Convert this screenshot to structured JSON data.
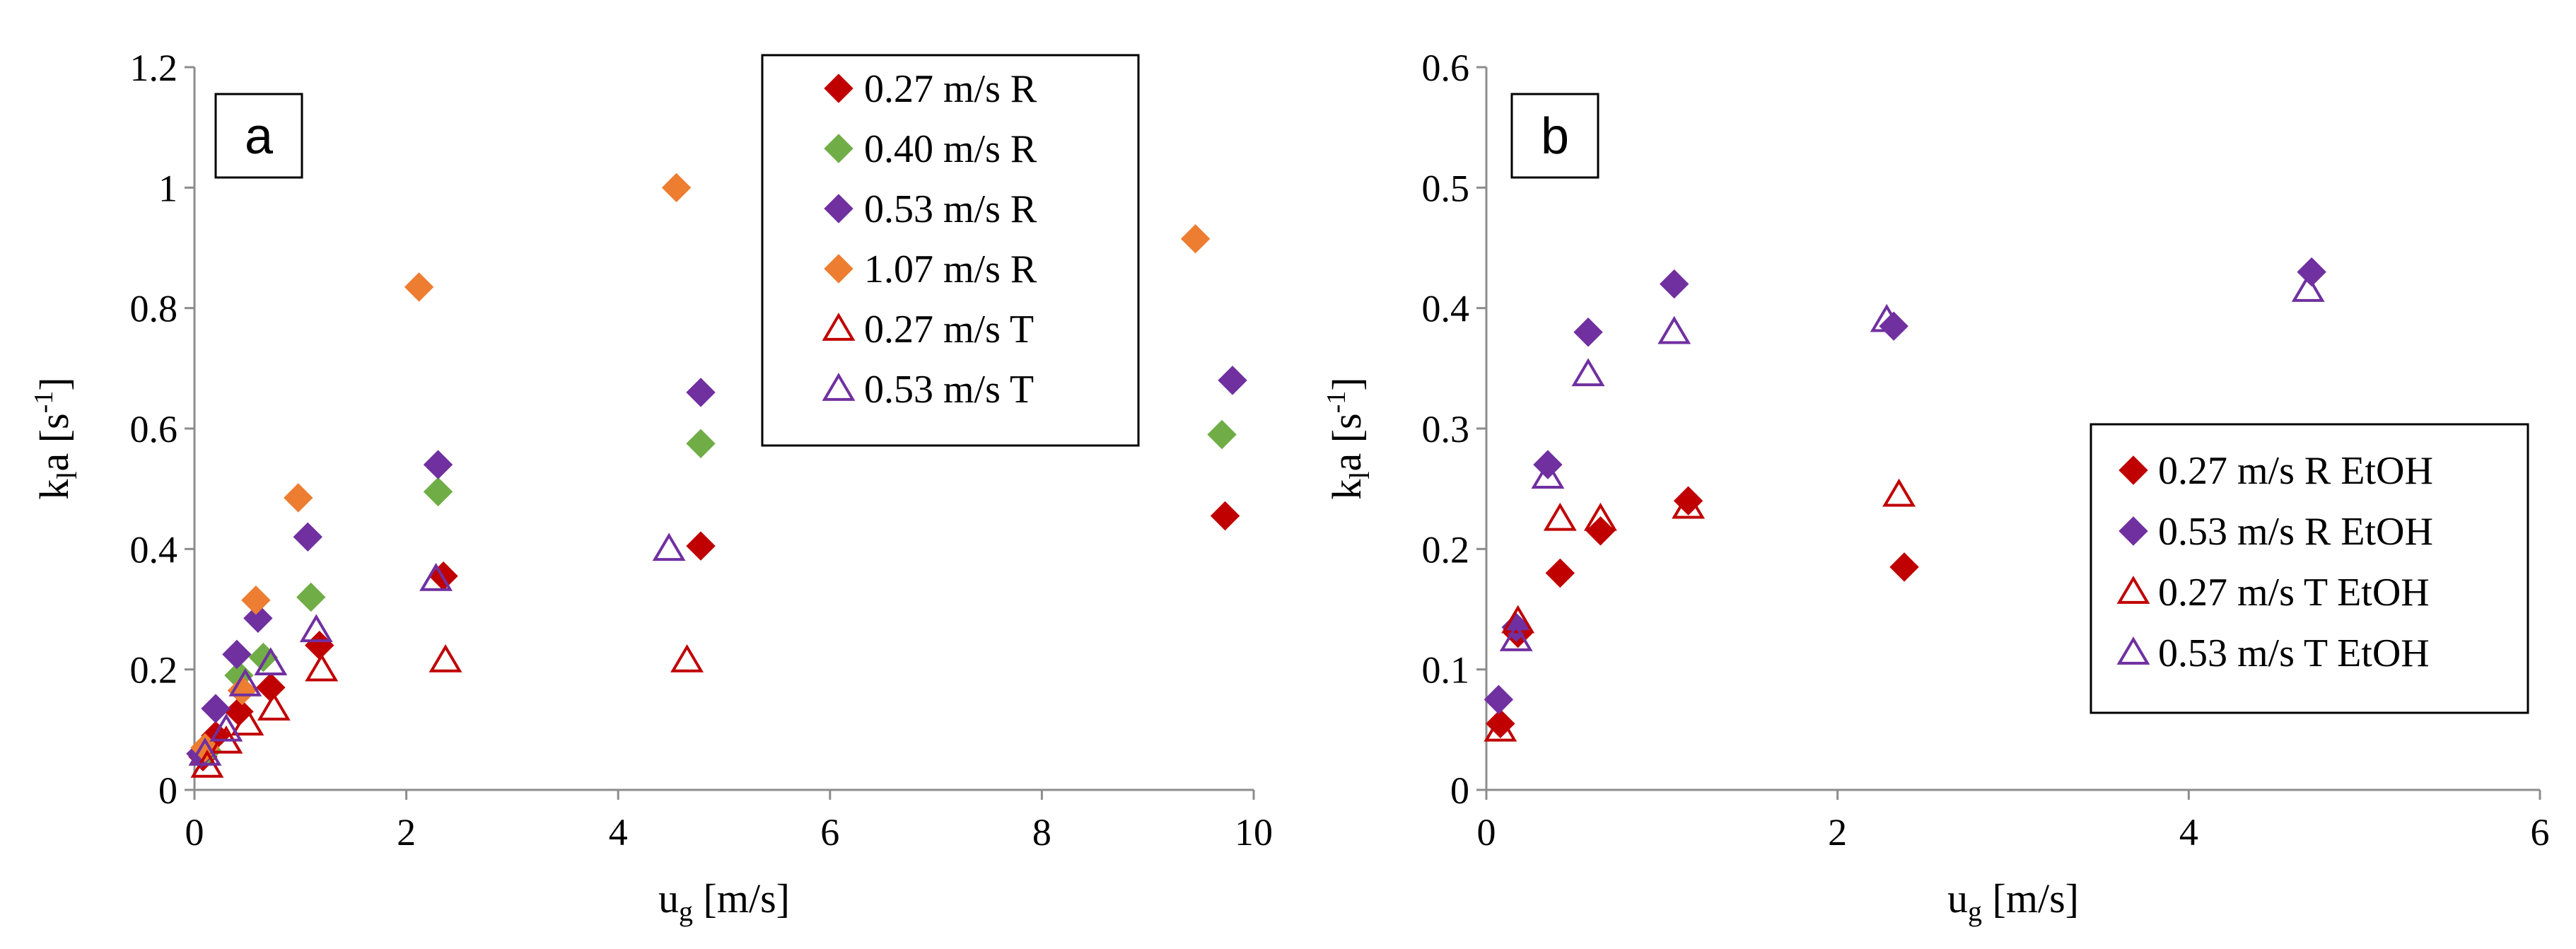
{
  "colors": {
    "red": "#C00000",
    "green": "#70AD47",
    "purple": "#7030A0",
    "orange": "#ED7D31",
    "axis": "#8C8C8C"
  },
  "chart_data": [
    {
      "type": "scatter",
      "panel_label": "a",
      "xlabel_main": "u",
      "xlabel_sub": "g",
      "xlabel_unit": " [m/s]",
      "ylabel_main": "k",
      "ylabel_sub": "l",
      "ylabel_mid": "a [s",
      "ylabel_sup": "-1",
      "ylabel_end": "]",
      "xlim": [
        0,
        10
      ],
      "ylim": [
        0,
        1.2
      ],
      "xticks": [
        "0",
        "2",
        "4",
        "6",
        "8",
        "10"
      ],
      "yticks": [
        "0",
        "0.2",
        "0.4",
        "0.6",
        "0.8",
        "1",
        "1.2"
      ],
      "grid": false,
      "legend_position": "top-right",
      "series": [
        {
          "name": "0.27 m/s R",
          "marker": "diamond",
          "color": "#C00000",
          "x": [
            0.08,
            0.2,
            0.42,
            0.72,
            1.18,
            2.35,
            4.78,
            9.73
          ],
          "y": [
            0.055,
            0.09,
            0.13,
            0.17,
            0.24,
            0.355,
            0.405,
            0.455
          ]
        },
        {
          "name": "0.40 m/s R",
          "marker": "diamond",
          "color": "#70AD47",
          "x": [
            0.12,
            0.42,
            0.65,
            1.1,
            2.3,
            4.78,
            9.7
          ],
          "y": [
            0.065,
            0.19,
            0.22,
            0.32,
            0.495,
            0.575,
            0.59
          ]
        },
        {
          "name": "0.53 m/s R",
          "marker": "diamond",
          "color": "#7030A0",
          "x": [
            0.06,
            0.2,
            0.4,
            0.6,
            1.07,
            2.3,
            4.78,
            9.8
          ],
          "y": [
            0.06,
            0.135,
            0.225,
            0.285,
            0.42,
            0.54,
            0.66,
            0.68
          ]
        },
        {
          "name": "1.07 m/s R",
          "marker": "diamond",
          "color": "#ED7D31",
          "x": [
            0.1,
            0.45,
            0.58,
            0.98,
            2.12,
            4.55,
            9.45
          ],
          "y": [
            0.07,
            0.165,
            0.315,
            0.485,
            0.835,
            1.0,
            0.915
          ]
        },
        {
          "name": "0.27 m/s T",
          "marker": "triangle-open",
          "color": "#C00000",
          "x": [
            0.12,
            0.3,
            0.5,
            0.75,
            1.2,
            2.37,
            4.65
          ],
          "y": [
            0.04,
            0.08,
            0.11,
            0.135,
            0.2,
            0.215,
            0.215
          ]
        },
        {
          "name": "0.53 m/s T",
          "marker": "triangle-open",
          "color": "#7030A0",
          "x": [
            0.1,
            0.3,
            0.48,
            0.72,
            1.15,
            2.28,
            4.48
          ],
          "y": [
            0.06,
            0.1,
            0.175,
            0.21,
            0.265,
            0.35,
            0.4
          ]
        }
      ]
    },
    {
      "type": "scatter",
      "panel_label": "b",
      "xlabel_main": "u",
      "xlabel_sub": "g",
      "xlabel_unit": " [m/s]",
      "ylabel_main": "k",
      "ylabel_sub": "l",
      "ylabel_mid": "a [s",
      "ylabel_sup": "-1",
      "ylabel_end": "]",
      "xlim": [
        0,
        6
      ],
      "ylim": [
        0,
        0.6
      ],
      "xticks": [
        "0",
        "2",
        "4",
        "6"
      ],
      "yticks": [
        "0",
        "0.1",
        "0.2",
        "0.3",
        "0.4",
        "0.5",
        "0.6"
      ],
      "grid": false,
      "legend_position": "bottom-right",
      "series": [
        {
          "name": "0.27 m/s R EtOH",
          "marker": "diamond",
          "color": "#C00000",
          "x": [
            0.08,
            0.18,
            0.42,
            0.65,
            1.15,
            2.38
          ],
          "y": [
            0.055,
            0.13,
            0.18,
            0.215,
            0.24,
            0.185
          ]
        },
        {
          "name": "0.53 m/s R EtOH",
          "marker": "diamond",
          "color": "#7030A0",
          "x": [
            0.07,
            0.17,
            0.35,
            0.58,
            1.07,
            2.32,
            4.7
          ],
          "y": [
            0.075,
            0.135,
            0.27,
            0.38,
            0.42,
            0.385,
            0.43
          ]
        },
        {
          "name": "0.27 m/s T EtOH",
          "marker": "triangle-open",
          "color": "#C00000",
          "x": [
            0.08,
            0.18,
            0.42,
            0.65,
            1.15,
            2.35
          ],
          "y": [
            0.05,
            0.14,
            0.225,
            0.225,
            0.235,
            0.245
          ]
        },
        {
          "name": "0.53 m/s T EtOH",
          "marker": "triangle-open",
          "color": "#7030A0",
          "x": [
            0.17,
            0.35,
            0.58,
            1.07,
            2.28,
            4.68
          ],
          "y": [
            0.125,
            0.26,
            0.345,
            0.38,
            0.39,
            0.415
          ]
        }
      ]
    }
  ]
}
